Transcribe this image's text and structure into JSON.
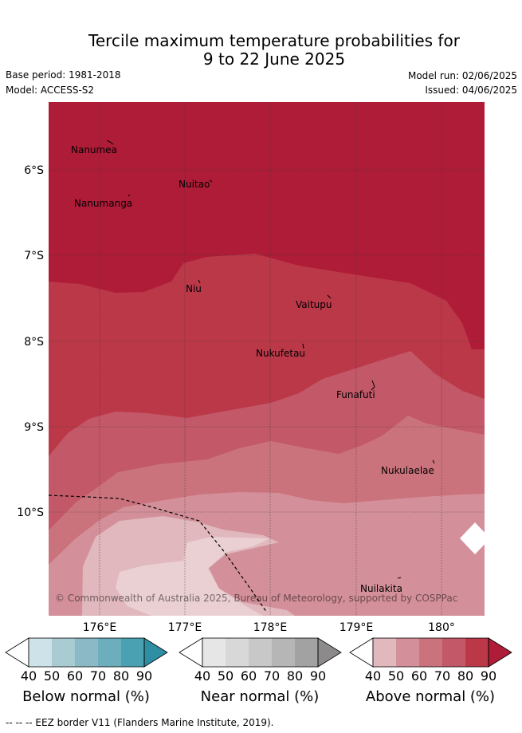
{
  "title_line1": "Tercile maximum temperature probabilities for",
  "title_line2": "9 to 22 June 2025",
  "base_period": "Base period: 1981-2018",
  "model": "Model: ACCESS-S2",
  "model_run": "Model run: 02/06/2025",
  "issued": "Issued: 04/06/2025",
  "copyright": "© Commonwealth of Australia 2025, Bureau of Meteorology, supported by COSPPac",
  "footer": "-- -- -- EEZ border V11 (Flanders Marine Institute, 2019).",
  "lat_ticks": [
    "6°S",
    "7°S",
    "8°S",
    "9°S",
    "10°S"
  ],
  "lon_ticks": [
    "176°E",
    "177°E",
    "178°E",
    "179°E",
    "180°"
  ],
  "places": {
    "nanumea": "Nanumea",
    "nuitao": "Nuitao",
    "nanumanga": "Nanumanga",
    "niu": "Niu",
    "vaitupu": "Vaitupu",
    "nukufetau": "Nukufetau",
    "funafuti": "Funafuti",
    "nukulaelae": "Nukulaelae",
    "nuilakita": "Nuilakita"
  },
  "legend": {
    "below": {
      "label": "Below normal (%)",
      "ticks": [
        "40",
        "50",
        "60",
        "70",
        "80",
        "90"
      ],
      "colors": [
        "#ffffff",
        "#cde3e9",
        "#a9cbd2",
        "#8bbac6",
        "#6daebd",
        "#4aa1b2",
        "#2e8ea3"
      ]
    },
    "near": {
      "label": "Near normal (%)",
      "ticks": [
        "40",
        "50",
        "60",
        "70",
        "80",
        "90"
      ],
      "colors": [
        "#ffffff",
        "#e6e6e6",
        "#d8d8d8",
        "#c8c8c8",
        "#b6b6b6",
        "#a2a2a2",
        "#8c8a8a"
      ]
    },
    "above": {
      "label": "Above normal (%)",
      "ticks": [
        "40",
        "50",
        "60",
        "70",
        "80",
        "90"
      ],
      "colors": [
        "#ffffff",
        "#e0b8bd",
        "#d4909a",
        "#cb737c",
        "#c35868",
        "#bb3848",
        "#ae1c38"
      ]
    }
  }
}
